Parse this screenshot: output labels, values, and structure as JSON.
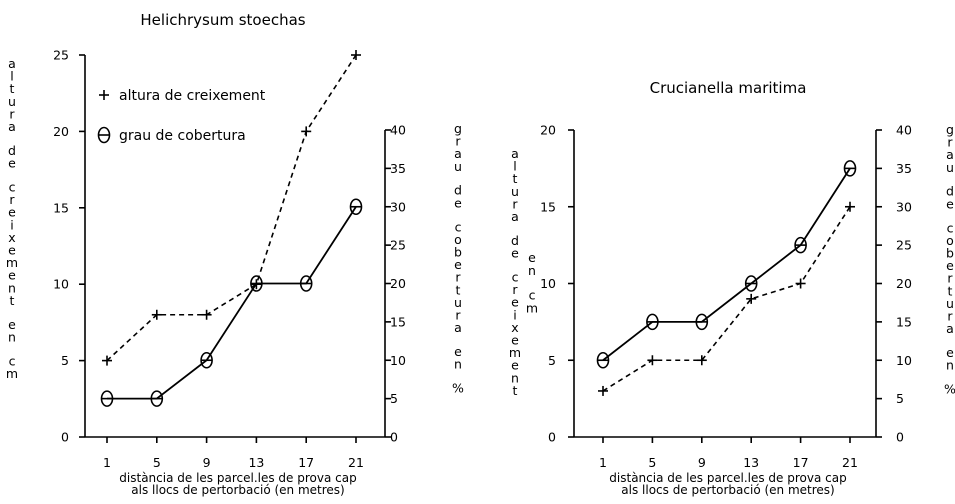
{
  "chart_data": [
    {
      "type": "line",
      "title": "Helichrysum stoechas",
      "x": [
        "1",
        "5",
        "9",
        "13",
        "17",
        "21"
      ],
      "xlabel": [
        "distància de les parcel.les de prova cap",
        "als llocs de pertorbació (en metres)"
      ],
      "ylabel_left": "altura de creixement en cm",
      "ylabel_right": "grau de cobertura en %",
      "ylim_left": [
        0,
        25
      ],
      "yticks_left": [
        "0",
        "5",
        "10",
        "15",
        "20",
        "25"
      ],
      "ylim_right": [
        0,
        40
      ],
      "yticks_right": [
        "0",
        "5",
        "10",
        "15",
        "20",
        "25",
        "30",
        "35",
        "40"
      ],
      "legend": {
        "position": "top-left",
        "entries": [
          "altura de creixement",
          "grau de cobertura"
        ]
      },
      "series": [
        {
          "name": "altura de creixement",
          "axis": "left",
          "marker": "plus",
          "style": "dashed",
          "values": [
            5,
            8,
            8,
            10,
            20,
            25
          ]
        },
        {
          "name": "grau de cobertura",
          "axis": "right",
          "marker": "theta",
          "style": "solid",
          "values": [
            5,
            5,
            10,
            20,
            20,
            30
          ]
        }
      ]
    },
    {
      "type": "line",
      "title": "Crucianella maritima",
      "x": [
        "1",
        "5",
        "9",
        "13",
        "17",
        "21"
      ],
      "xlabel": [
        "distància de les parcel.les de prova cap",
        "als llocs de pertorbació (en metres)"
      ],
      "ylabel_left": "altura de creixement en cm",
      "ylabel_right": "grau de cobertura en %",
      "ylim_left": [
        0,
        20
      ],
      "yticks_left": [
        "0",
        "5",
        "10",
        "15",
        "20"
      ],
      "ylim_right": [
        0,
        40
      ],
      "yticks_right": [
        "0",
        "5",
        "10",
        "15",
        "20",
        "25",
        "30",
        "35",
        "40"
      ],
      "series": [
        {
          "name": "altura de creixement",
          "axis": "left",
          "marker": "plus",
          "style": "dashed",
          "values": [
            3,
            5,
            5,
            9,
            10,
            15
          ]
        },
        {
          "name": "grau de cobertura",
          "axis": "right",
          "marker": "theta",
          "style": "solid",
          "values": [
            10,
            15,
            15,
            20,
            25,
            35
          ]
        }
      ]
    }
  ]
}
